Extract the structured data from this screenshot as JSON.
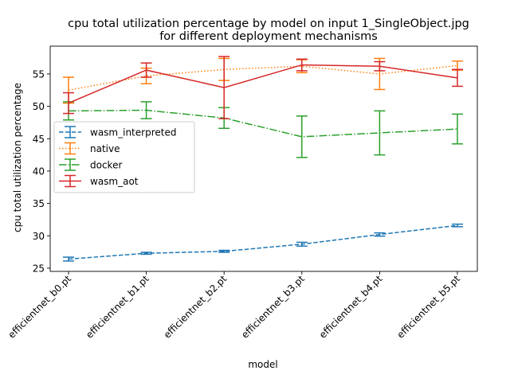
{
  "chart_data": {
    "type": "line",
    "title_line1": "cpu total utilization percentage by model on input 1_SingleObject.jpg",
    "title_line2": "for different deployment mechanisms",
    "xlabel": "model",
    "ylabel": "cpu total utilization percentage",
    "categories": [
      "efficientnet_b0.pt",
      "efficientnet_b1.pt",
      "efficientnet_b2.pt",
      "efficientnet_b3.pt",
      "efficientnet_b4.pt",
      "efficientnet_b5.pt"
    ],
    "yticks": [
      25,
      30,
      35,
      40,
      45,
      50,
      55
    ],
    "ylim": [
      24.5,
      59.3
    ],
    "grid": false,
    "legend_position": "center-left",
    "series": [
      {
        "name": "wasm_interpreted",
        "color": "#1f77b4",
        "dash": "dashed",
        "values": [
          26.4,
          27.3,
          27.6,
          28.7,
          30.2,
          31.6
        ],
        "errors": [
          0.3,
          0.15,
          0.15,
          0.3,
          0.25,
          0.2
        ]
      },
      {
        "name": "native",
        "color": "#ff7f0e",
        "dash": "dotted",
        "values": [
          52.5,
          54.7,
          55.7,
          56.2,
          55.0,
          56.3
        ],
        "errors": [
          2.0,
          1.2,
          1.7,
          1.0,
          2.4,
          0.7
        ]
      },
      {
        "name": "docker",
        "color": "#2ca02c",
        "dash": "dashdot",
        "values": [
          49.3,
          49.4,
          48.2,
          45.3,
          45.9,
          46.5
        ],
        "errors": [
          1.4,
          1.3,
          1.6,
          3.2,
          3.4,
          2.3
        ]
      },
      {
        "name": "wasm_aot",
        "color": "#d62728",
        "dash": "solid",
        "values": [
          50.5,
          55.6,
          52.9,
          56.4,
          56.2,
          54.4
        ],
        "errors": [
          1.6,
          1.1,
          4.8,
          0.9,
          0.7,
          1.3
        ]
      }
    ]
  }
}
